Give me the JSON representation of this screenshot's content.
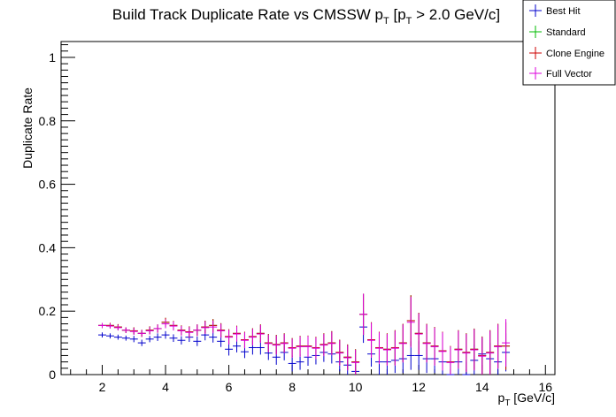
{
  "chart_data": {
    "type": "scatter",
    "title_main": "Build Track Duplicate Rate vs CMSSW p",
    "title_sub": "T",
    "title_mid": " [p",
    "title_sub2": "T",
    "title_end": " > 2.0 GeV/c]",
    "xlabel_main": "p",
    "xlabel_sub": "T",
    "xlabel_end": " [GeV/c]",
    "ylabel": "Duplicate Rate",
    "xlim": [
      0.7,
      16.3
    ],
    "ylim": [
      0,
      1.05
    ],
    "xticks": [
      "2",
      "4",
      "6",
      "8",
      "10",
      "12",
      "14",
      "16"
    ],
    "yticks": [
      "0",
      "0.2",
      "0.4",
      "0.6",
      "0.8",
      "1"
    ],
    "legend": {
      "placement": "top-right",
      "entries": [
        "Best Hit",
        "Standard",
        "Clone Engine",
        "Full Vector"
      ]
    },
    "series": [
      {
        "name": "Best Hit",
        "color": "#0000cc",
        "x": [
          2.0,
          2.25,
          2.5,
          2.75,
          3.0,
          3.25,
          3.5,
          3.75,
          4.0,
          4.25,
          4.5,
          4.75,
          5.0,
          5.25,
          5.5,
          5.75,
          6.0,
          6.25,
          6.5,
          6.75,
          7.0,
          7.25,
          7.5,
          7.75,
          8.0,
          8.25,
          8.5,
          8.75,
          9.0,
          9.25,
          9.5,
          9.75,
          10.0,
          10.25,
          10.5,
          10.75,
          11.0,
          11.25,
          11.5,
          11.75,
          12.0,
          12.25,
          12.5,
          12.75,
          13.0,
          13.25,
          13.5,
          13.75,
          14.0,
          14.25,
          14.5,
          14.75
        ],
        "y": [
          0.125,
          0.122,
          0.118,
          0.115,
          0.112,
          0.1,
          0.112,
          0.118,
          0.125,
          0.115,
          0.108,
          0.118,
          0.105,
          0.125,
          0.118,
          0.105,
          0.08,
          0.09,
          0.072,
          0.085,
          0.085,
          0.068,
          0.055,
          0.07,
          0.035,
          0.04,
          0.055,
          0.06,
          0.07,
          0.065,
          0.04,
          0.03,
          0.01,
          0.15,
          0.065,
          0.04,
          0.04,
          0.045,
          0.05,
          0.06,
          0.06,
          0.05,
          0.05,
          0.04,
          0.0,
          0.04,
          0.0,
          0.045,
          0.065,
          0.05,
          0.04,
          0.07
        ],
        "err": [
          0.008,
          0.008,
          0.008,
          0.008,
          0.01,
          0.01,
          0.01,
          0.012,
          0.012,
          0.012,
          0.013,
          0.015,
          0.015,
          0.017,
          0.017,
          0.018,
          0.02,
          0.02,
          0.02,
          0.022,
          0.022,
          0.022,
          0.024,
          0.025,
          0.025,
          0.025,
          0.027,
          0.028,
          0.03,
          0.03,
          0.03,
          0.03,
          0.03,
          0.05,
          0.04,
          0.04,
          0.04,
          0.04,
          0.045,
          0.045,
          0.045,
          0.045,
          0.045,
          0.045,
          0.04,
          0.05,
          0.04,
          0.05,
          0.05,
          0.05,
          0.05,
          0.06
        ]
      },
      {
        "name": "Standard",
        "color": "#00bb00",
        "x": [
          2.0,
          2.25,
          2.5,
          2.75,
          3.0,
          3.25,
          3.5,
          3.75,
          4.0,
          4.25,
          4.5,
          4.75,
          5.0,
          5.25,
          5.5,
          5.75,
          6.0,
          6.25,
          6.5,
          6.75,
          7.0,
          7.25,
          7.5,
          7.75,
          8.0,
          8.25,
          8.5,
          8.75,
          9.0,
          9.25,
          9.5,
          9.75,
          10.0,
          10.25,
          10.5,
          10.75,
          11.0,
          11.25,
          11.5,
          11.75,
          12.0,
          12.25,
          12.5,
          12.75,
          13.0,
          13.25,
          13.5,
          13.75,
          14.0,
          14.25,
          14.5,
          14.75
        ],
        "y": [
          0.155,
          0.155,
          0.15,
          0.14,
          0.138,
          0.13,
          0.14,
          0.145,
          0.165,
          0.155,
          0.14,
          0.135,
          0.14,
          0.15,
          0.155,
          0.14,
          0.12,
          0.13,
          0.11,
          0.12,
          0.13,
          0.1,
          0.095,
          0.1,
          0.085,
          0.09,
          0.09,
          0.085,
          0.095,
          0.1,
          0.07,
          0.055,
          0.04,
          0.19,
          0.11,
          0.085,
          0.08,
          0.085,
          0.1,
          0.17,
          0.13,
          0.1,
          0.09,
          0.075,
          0.04,
          0.08,
          0.07,
          0.08,
          0.06,
          0.07,
          0.09,
          0.09
        ],
        "err": [
          0.008,
          0.008,
          0.009,
          0.009,
          0.011,
          0.011,
          0.012,
          0.013,
          0.014,
          0.014,
          0.015,
          0.017,
          0.018,
          0.02,
          0.02,
          0.022,
          0.023,
          0.024,
          0.025,
          0.026,
          0.028,
          0.028,
          0.03,
          0.03,
          0.03,
          0.032,
          0.033,
          0.034,
          0.035,
          0.037,
          0.04,
          0.04,
          0.04,
          0.065,
          0.055,
          0.05,
          0.05,
          0.055,
          0.06,
          0.08,
          0.065,
          0.06,
          0.06,
          0.06,
          0.05,
          0.06,
          0.06,
          0.065,
          0.06,
          0.07,
          0.07,
          0.075
        ]
      },
      {
        "name": "Clone Engine",
        "color": "#cc0000",
        "x": [
          2.0,
          2.25,
          2.5,
          2.75,
          3.0,
          3.25,
          3.5,
          3.75,
          4.0,
          4.25,
          4.5,
          4.75,
          5.0,
          5.25,
          5.5,
          5.75,
          6.0,
          6.25,
          6.5,
          6.75,
          7.0,
          7.25,
          7.5,
          7.75,
          8.0,
          8.25,
          8.5,
          8.75,
          9.0,
          9.25,
          9.5,
          9.75,
          10.0,
          10.25,
          10.5,
          10.75,
          11.0,
          11.25,
          11.5,
          11.75,
          12.0,
          12.25,
          12.5,
          12.75,
          13.0,
          13.25,
          13.5,
          13.75,
          14.0,
          14.25,
          14.5,
          14.75
        ],
        "y": [
          0.155,
          0.155,
          0.15,
          0.14,
          0.138,
          0.13,
          0.14,
          0.145,
          0.165,
          0.155,
          0.14,
          0.135,
          0.14,
          0.15,
          0.155,
          0.14,
          0.12,
          0.13,
          0.11,
          0.12,
          0.13,
          0.1,
          0.095,
          0.1,
          0.085,
          0.09,
          0.09,
          0.085,
          0.095,
          0.1,
          0.07,
          0.055,
          0.04,
          0.19,
          0.11,
          0.085,
          0.08,
          0.085,
          0.1,
          0.17,
          0.13,
          0.1,
          0.09,
          0.075,
          0.04,
          0.08,
          0.07,
          0.08,
          0.06,
          0.07,
          0.09,
          0.09
        ],
        "err": [
          0.008,
          0.008,
          0.009,
          0.009,
          0.011,
          0.011,
          0.012,
          0.013,
          0.014,
          0.014,
          0.015,
          0.017,
          0.018,
          0.02,
          0.02,
          0.022,
          0.023,
          0.024,
          0.025,
          0.026,
          0.028,
          0.028,
          0.03,
          0.03,
          0.03,
          0.032,
          0.033,
          0.034,
          0.035,
          0.037,
          0.04,
          0.04,
          0.04,
          0.065,
          0.055,
          0.05,
          0.05,
          0.055,
          0.06,
          0.08,
          0.065,
          0.06,
          0.06,
          0.06,
          0.05,
          0.06,
          0.06,
          0.065,
          0.06,
          0.07,
          0.07,
          0.075
        ]
      },
      {
        "name": "Full Vector",
        "color": "#dd00dd",
        "x": [
          2.0,
          2.25,
          2.5,
          2.75,
          3.0,
          3.25,
          3.5,
          3.75,
          4.0,
          4.25,
          4.5,
          4.75,
          5.0,
          5.25,
          5.5,
          5.75,
          6.0,
          6.25,
          6.5,
          6.75,
          7.0,
          7.25,
          7.5,
          7.75,
          8.0,
          8.25,
          8.5,
          8.75,
          9.0,
          9.25,
          9.5,
          9.75,
          10.0,
          10.25,
          10.5,
          10.75,
          11.0,
          11.25,
          11.5,
          11.75,
          12.0,
          12.25,
          12.5,
          12.75,
          13.0,
          13.25,
          13.5,
          13.75,
          14.0,
          14.25,
          14.5,
          14.75
        ],
        "y": [
          0.155,
          0.153,
          0.148,
          0.14,
          0.136,
          0.13,
          0.138,
          0.145,
          0.16,
          0.153,
          0.138,
          0.133,
          0.14,
          0.148,
          0.15,
          0.138,
          0.118,
          0.128,
          0.108,
          0.118,
          0.128,
          0.098,
          0.093,
          0.098,
          0.083,
          0.088,
          0.088,
          0.083,
          0.093,
          0.098,
          0.068,
          0.053,
          0.038,
          0.19,
          0.108,
          0.083,
          0.078,
          0.083,
          0.098,
          0.165,
          0.128,
          0.098,
          0.088,
          0.073,
          0.038,
          0.078,
          0.068,
          0.078,
          0.058,
          0.068,
          0.088,
          0.1
        ],
        "err": [
          0.008,
          0.008,
          0.009,
          0.009,
          0.011,
          0.011,
          0.012,
          0.013,
          0.014,
          0.014,
          0.015,
          0.017,
          0.018,
          0.02,
          0.02,
          0.022,
          0.023,
          0.024,
          0.025,
          0.026,
          0.028,
          0.028,
          0.03,
          0.03,
          0.03,
          0.032,
          0.033,
          0.034,
          0.035,
          0.037,
          0.04,
          0.04,
          0.04,
          0.065,
          0.055,
          0.05,
          0.05,
          0.055,
          0.06,
          0.08,
          0.065,
          0.06,
          0.06,
          0.06,
          0.05,
          0.06,
          0.06,
          0.065,
          0.06,
          0.07,
          0.07,
          0.075
        ]
      }
    ]
  }
}
